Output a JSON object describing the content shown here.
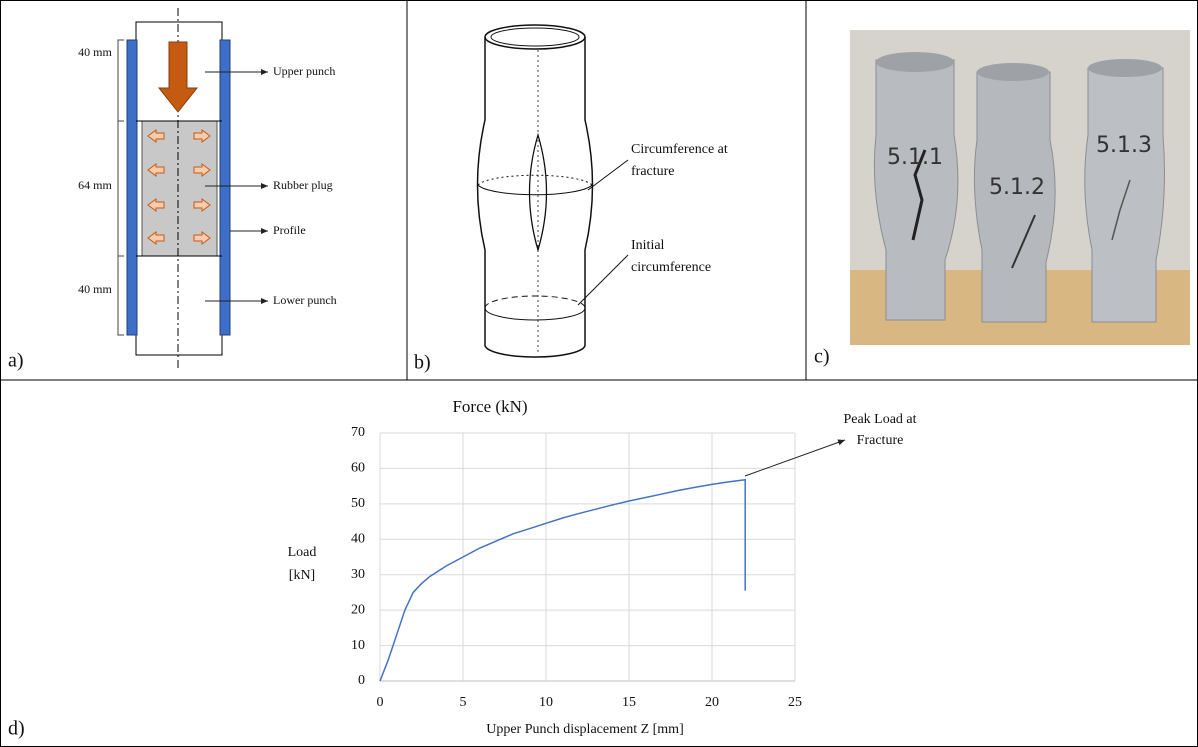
{
  "panel_a": {
    "label": "a)",
    "dimensions": [
      "40 mm",
      "64 mm",
      "40 mm"
    ],
    "parts": [
      "Upper punch",
      "Rubber plug",
      "Profile",
      "Lower punch"
    ]
  },
  "panel_b": {
    "label": "b)",
    "fracture_label": [
      "Circumference at",
      "fracture"
    ],
    "initial_label": [
      "Initial",
      "circumference"
    ]
  },
  "panel_c": {
    "label": "c)",
    "specimens": [
      "5.1.1",
      "5.1.2",
      "5.1.3"
    ]
  },
  "panel_d": {
    "label": "d)"
  },
  "chart_data": {
    "type": "line",
    "title": "Force (kN)",
    "x_label": "Upper Punch displacement Z [mm]",
    "y_label": [
      "Load",
      "[kN]"
    ],
    "annotation": [
      "Peak Load at",
      "Fracture"
    ],
    "x": [
      0,
      0.5,
      1,
      1.5,
      2,
      2.5,
      3,
      4,
      5,
      6,
      7,
      8,
      9,
      10,
      11,
      12,
      13,
      14,
      15,
      16,
      17,
      18,
      19,
      20,
      21,
      22,
      22
    ],
    "series": [
      {
        "name": "Force (kN)",
        "color": "#4472c4",
        "values": [
          0,
          6,
          13,
          20,
          25,
          27.5,
          29.5,
          32.5,
          35,
          37.5,
          39.5,
          41.5,
          43,
          44.5,
          46,
          47.3,
          48.5,
          49.7,
          50.8,
          51.8,
          52.8,
          53.8,
          54.7,
          55.5,
          56.2,
          56.8,
          25.5
        ]
      }
    ],
    "xlim": [
      0,
      25
    ],
    "xticks": [
      0,
      5,
      10,
      15,
      20,
      25
    ],
    "ylim": [
      0,
      70
    ],
    "yticks": [
      0,
      10,
      20,
      30,
      40,
      50,
      60,
      70
    ],
    "grid": true
  }
}
